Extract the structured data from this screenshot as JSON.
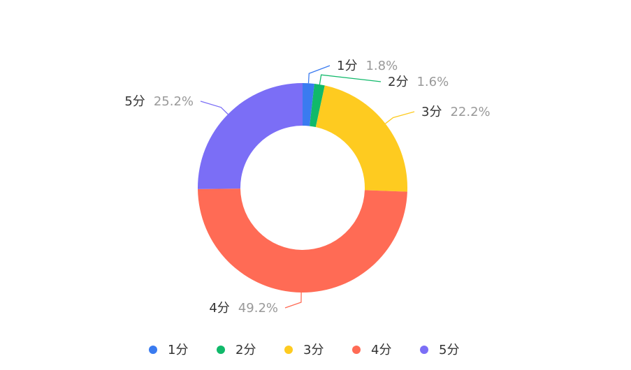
{
  "chart_data": {
    "type": "pie",
    "donut": true,
    "categories": [
      "1分",
      "2分",
      "3分",
      "4分",
      "5分"
    ],
    "values": [
      1.8,
      1.6,
      22.2,
      49.2,
      25.2
    ],
    "value_labels": [
      "1.8%",
      "1.6%",
      "22.2%",
      "49.2%",
      "25.2%"
    ],
    "colors": [
      "#3a7bf0",
      "#10b96a",
      "#fecb20",
      "#ff6b55",
      "#7b6ef6"
    ],
    "legend_position": "bottom",
    "title": ""
  }
}
